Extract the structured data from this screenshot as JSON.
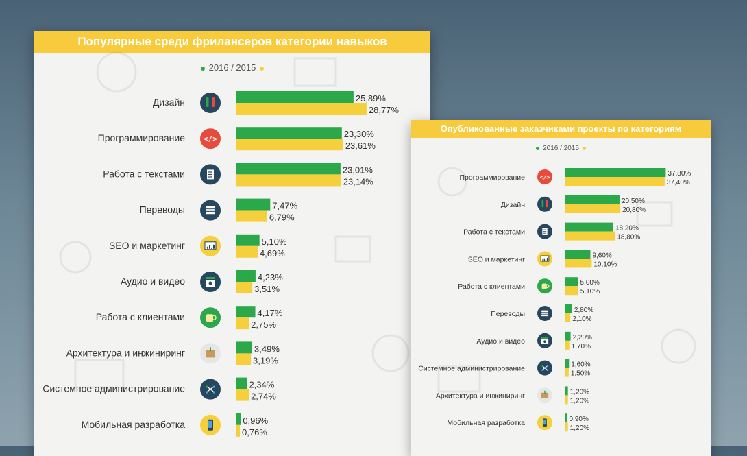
{
  "legend_text": "2016 / 2015",
  "colors": {
    "series_2016": "#2aa84a",
    "series_2015": "#f6cf3c",
    "header": "#f7cb3c"
  },
  "chart_data": [
    {
      "type": "bar",
      "title": "Популярные среди фрилансеров категории навыков",
      "categories": [
        "Дизайн",
        "Программирование",
        "Работа с текстами",
        "Переводы",
        "SEO и маркетинг",
        "Аудио и видео",
        "Работа с клиентами",
        "Архитектура и инжиниринг",
        "Системное администрирование",
        "Мобильная разработка"
      ],
      "icons": [
        "pencils-icon",
        "code-icon",
        "document-icon",
        "books-icon",
        "presentation-chart-icon",
        "film-clapper-icon",
        "coffee-cup-icon",
        "package-box-icon",
        "network-icon",
        "smartphone-icon"
      ],
      "series": [
        {
          "name": "2016",
          "values": [
            25.89,
            23.3,
            23.01,
            7.47,
            5.1,
            4.23,
            4.17,
            3.49,
            2.34,
            0.96
          ],
          "labels": [
            "25,89%",
            "23,30%",
            "23,01%",
            "7,47%",
            "5,10%",
            "4,23%",
            "4,17%",
            "3,49%",
            "2,34%",
            "0,96%"
          ]
        },
        {
          "name": "2015",
          "values": [
            28.77,
            23.61,
            23.14,
            6.79,
            4.69,
            3.51,
            2.75,
            3.19,
            2.74,
            0.76
          ],
          "labels": [
            "28,77%",
            "23,61%",
            "23,14%",
            "6,79%",
            "4,69%",
            "3,51%",
            "2,75%",
            "3,19%",
            "2,74%",
            "0,76%"
          ]
        }
      ]
    },
    {
      "type": "bar",
      "title": "Опубликованные заказчиками проекты по категориям",
      "categories": [
        "Программирование",
        "Дизайн",
        "Работа с текстами",
        "SEO и маркетинг",
        "Работа с клиентами",
        "Переводы",
        "Аудио и видео",
        "Системное администрирование",
        "Архитектура и инжиниринг",
        "Мобильная разработка"
      ],
      "icons": [
        "code-icon",
        "pencils-icon",
        "document-icon",
        "presentation-chart-icon",
        "coffee-cup-icon",
        "books-icon",
        "film-clapper-icon",
        "network-icon",
        "package-box-icon",
        "smartphone-icon"
      ],
      "series": [
        {
          "name": "2016",
          "values": [
            37.8,
            20.5,
            18.2,
            9.6,
            5.0,
            2.8,
            2.2,
            1.6,
            1.2,
            0.9
          ],
          "labels": [
            "37,80%",
            "20,50%",
            "18,20%",
            "9,60%",
            "5,00%",
            "2,80%",
            "2,20%",
            "1,60%",
            "1,20%",
            "0,90%"
          ]
        },
        {
          "name": "2015",
          "values": [
            37.4,
            20.8,
            18.8,
            10.1,
            5.1,
            2.1,
            1.7,
            1.5,
            1.2,
            1.2
          ],
          "labels": [
            "37,40%",
            "20,80%",
            "18,80%",
            "10,10%",
            "5,10%",
            "2,10%",
            "1,70%",
            "1,50%",
            "1,20%",
            "1,20%"
          ]
        }
      ]
    }
  ]
}
